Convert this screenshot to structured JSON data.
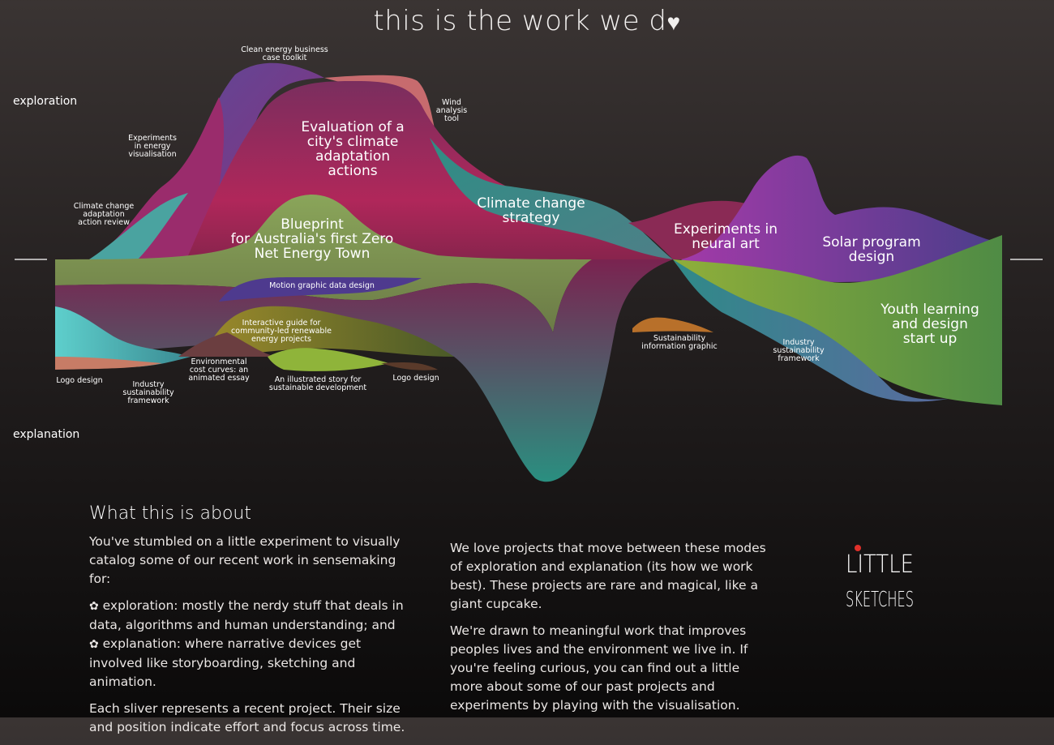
{
  "page": {
    "title": "this is the work we d",
    "title_heart": "♥"
  },
  "axis": {
    "top_label": "exploration",
    "bottom_label": "explanation"
  },
  "chart_data": {
    "type": "area",
    "subtype": "streamgraph",
    "orientation": "exploration above the midline, explanation below",
    "grid": false,
    "legend": "none",
    "series": [
      {
        "name": "Evaluation of a city's climate adaptation actions",
        "mode": "exploration",
        "color": "#a8294f"
      },
      {
        "name": "Blueprint for Australia's first Zero Net Energy Town",
        "mode": "exploration and explanation",
        "color": "#7a8f4a"
      },
      {
        "name": "Climate change strategy",
        "mode": "exploration and explanation",
        "color": "#3a8d82"
      },
      {
        "name": "Experiments in neural art",
        "mode": "exploration",
        "color": "#8a2a55"
      },
      {
        "name": "Solar program design",
        "mode": "exploration",
        "color": "#8d3ea0"
      },
      {
        "name": "Youth learning and design start up",
        "mode": "explanation",
        "color": "#5d9a3e"
      },
      {
        "name": "Clean energy business case toolkit",
        "mode": "exploration",
        "color": "#6b4090"
      },
      {
        "name": "Wind analysis tool",
        "mode": "exploration",
        "color": "#c36a6f"
      },
      {
        "name": "Experiments in energy visualisation",
        "mode": "exploration",
        "color": "#9c2d6a"
      },
      {
        "name": "Climate change adaptation action review",
        "mode": "exploration",
        "color": "#4aa3a0"
      },
      {
        "name": "Motion graphic data design",
        "mode": "explanation",
        "color": "#5a3a90"
      },
      {
        "name": "Interactive guide for community-led renewable energy projects",
        "mode": "explanation",
        "color": "#8a7a30"
      },
      {
        "name": "Logo design",
        "mode": "explanation",
        "color": "#5ec4c2"
      },
      {
        "name": "Industry sustainability framework",
        "mode": "explanation",
        "color": "#3b8d8a"
      },
      {
        "name": "Environmental cost curves: an animated essay",
        "mode": "explanation",
        "color": "#7a4a40"
      },
      {
        "name": "An illustrated story for sustainable development",
        "mode": "explanation",
        "color": "#8ab040"
      },
      {
        "name": "Sustainability information graphic",
        "mode": "explanation",
        "color": "#b8702a"
      }
    ],
    "labels": {
      "evaluation": "Evaluation of a city's climate adaptation actions",
      "blueprint": "Blueprint for Australia's first Zero Net Energy Town",
      "climate_strategy": "Climate change strategy",
      "neural_art": "Experiments in neural art",
      "solar": "Solar program design",
      "youth": "Youth learning and design start up",
      "clean_energy": "Clean energy business case toolkit",
      "wind": "Wind analysis tool",
      "energy_vis": "Experiments in energy visualisation",
      "adaptation_review": "Climate change adaptation action review",
      "motion": "Motion graphic data design",
      "interactive_guide": "Interactive guide for community-led renewable energy projects",
      "logo_left": "Logo design",
      "industry_left": "Industry sustainability framework",
      "env_cost": "Environmental cost curves: an animated essay",
      "illustrated": "An illustrated story for sustainable development",
      "logo_mid": "Logo design",
      "sust_info": "Sustainability information graphic",
      "industry_right": "Industry sustainability framework"
    }
  },
  "about": {
    "heading": "What this is about",
    "intro": "You've stumbled on a little experiment to visually catalog some of our recent work in sensemaking for:",
    "bullet_1": "exploration: mostly the nerdy stuff that deals in data, algorithms and human understanding; and",
    "bullet_2": "explanation: where narrative devices get involved like storyboarding, sketching and animation.",
    "sliver_text": "Each sliver represents a recent project. Their size and position indicate effort and focus across time.",
    "para_love": "We love projects that move between these modes of exploration and explanation (its how we work best). These projects are rare and magical, like a giant cupcake.",
    "para_drawn": "We're drawn to meaningful work that improves peoples lives and the environment we live in. If you're feeling curious, you can find out a little more about some of our past projects and experiments by playing with the visualisation.",
    "gear_glyph": "✿"
  },
  "logo": {
    "line1": "LITTLE",
    "line2": "SKETCHES"
  }
}
